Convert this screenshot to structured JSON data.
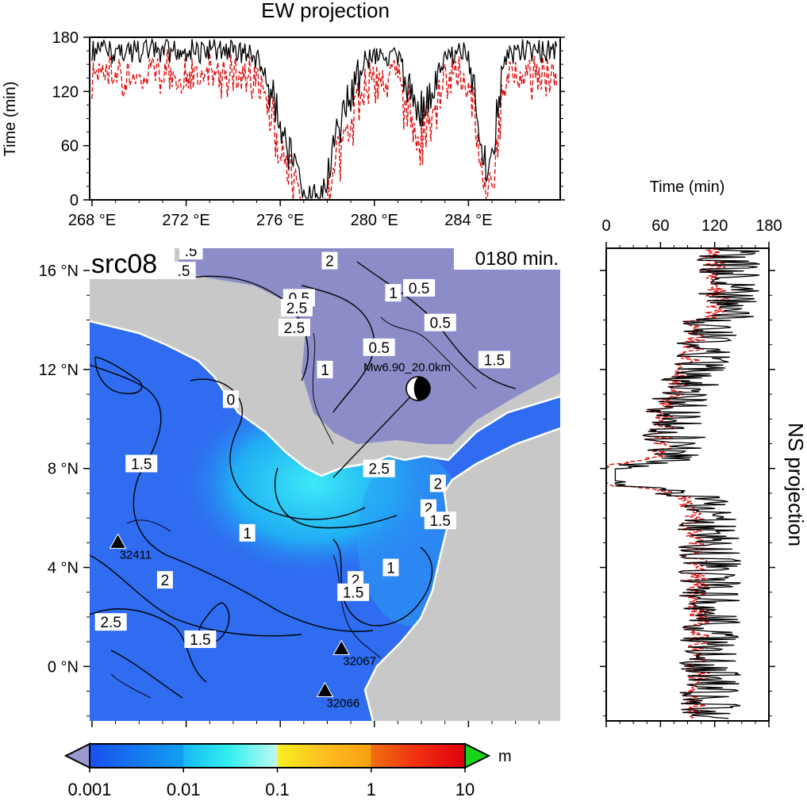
{
  "ew_panel": {
    "title": "EW projection",
    "y_axis_label": "Time (min)",
    "y_ticks": [
      "0",
      "60",
      "120",
      "180"
    ],
    "y_tick_values": [
      0,
      60,
      120,
      180
    ],
    "x_ticks": [
      "268 °E",
      "272 °E",
      "276 °E",
      "280 °E",
      "284 °E"
    ],
    "x_tick_values": [
      268,
      272,
      276,
      280,
      284
    ],
    "x_range": [
      267.9,
      287.9
    ],
    "y_range": [
      0,
      180
    ]
  },
  "ns_panel": {
    "title": "NS projection",
    "x_axis_label": "Time (min)",
    "x_ticks": [
      "0",
      "60",
      "120",
      "180"
    ],
    "x_tick_values": [
      0,
      60,
      120,
      180
    ],
    "y_range": [
      -2.2,
      17.8
    ]
  },
  "map": {
    "source_label": "src08",
    "time_label": "0180 min.",
    "lat_ticks": [
      "16 °N",
      "12 °N",
      "8 °N",
      "4 °N",
      "0 °N"
    ],
    "lat_tick_values": [
      16,
      12,
      8,
      4,
      0
    ],
    "lon_range": [
      267.9,
      287.9
    ],
    "lat_range": [
      -2.2,
      16.9
    ],
    "source_annotation": "Mw6.90_20.0km",
    "stations": [
      {
        "id": "32411",
        "lon": 269.1,
        "lat": 5.0
      },
      {
        "id": "32067",
        "lon": 278.6,
        "lat": 0.7
      },
      {
        "id": "32066",
        "lon": 277.9,
        "lat": -1.0
      }
    ],
    "contour_labels": [
      {
        "text": ".5",
        "lon": 272.2,
        "lat": 16.8
      },
      {
        "text": ".5",
        "lon": 271.9,
        "lat": 16.0
      },
      {
        "text": "2",
        "lon": 278.1,
        "lat": 16.4
      },
      {
        "text": "0.5",
        "lon": 281.9,
        "lat": 15.3
      },
      {
        "text": "1",
        "lon": 280.8,
        "lat": 15.1
      },
      {
        "text": "0.5",
        "lon": 276.8,
        "lat": 14.9
      },
      {
        "text": "2.5",
        "lon": 276.7,
        "lat": 14.5
      },
      {
        "text": "2.5",
        "lon": 276.6,
        "lat": 13.7
      },
      {
        "text": "0.5",
        "lon": 282.8,
        "lat": 13.9
      },
      {
        "text": "0.5",
        "lon": 280.2,
        "lat": 12.9
      },
      {
        "text": "1.5",
        "lon": 285.1,
        "lat": 12.4
      },
      {
        "text": "1",
        "lon": 277.9,
        "lat": 12.0
      },
      {
        "text": "0",
        "lon": 273.9,
        "lat": 10.8
      },
      {
        "text": "1.5",
        "lon": 270.1,
        "lat": 8.2
      },
      {
        "text": "2.5",
        "lon": 280.2,
        "lat": 8.0
      },
      {
        "text": "2",
        "lon": 282.7,
        "lat": 7.4
      },
      {
        "text": "2",
        "lon": 282.3,
        "lat": 6.4
      },
      {
        "text": "1.5",
        "lon": 282.8,
        "lat": 5.9
      },
      {
        "text": "1",
        "lon": 274.6,
        "lat": 5.4
      },
      {
        "text": "1",
        "lon": 280.7,
        "lat": 4.0
      },
      {
        "text": "2",
        "lon": 271.1,
        "lat": 3.5
      },
      {
        "text": "2",
        "lon": 279.2,
        "lat": 3.5
      },
      {
        "text": "1.5",
        "lon": 279.1,
        "lat": 3.0
      },
      {
        "text": "2.5",
        "lon": 268.8,
        "lat": 1.8
      },
      {
        "text": "1.5",
        "lon": 272.6,
        "lat": 1.1
      }
    ]
  },
  "colorbar": {
    "unit": "m",
    "tick_labels": [
      "0.001",
      "0.01",
      "0.1",
      "1",
      "10"
    ],
    "tick_values": [
      0.001,
      0.01,
      0.1,
      1,
      10
    ],
    "scale": "log",
    "under_color": "#9a9ad0",
    "over_color": "#19d419"
  },
  "colors": {
    "land": "#c8c8c8",
    "inland_water": "#8c8cc8",
    "ocean_deep_blue": "#2f6cf0",
    "ocean_cyan": "#39f0f0",
    "ew_solid": "#000000",
    "ew_dashed": "#e01010"
  }
}
